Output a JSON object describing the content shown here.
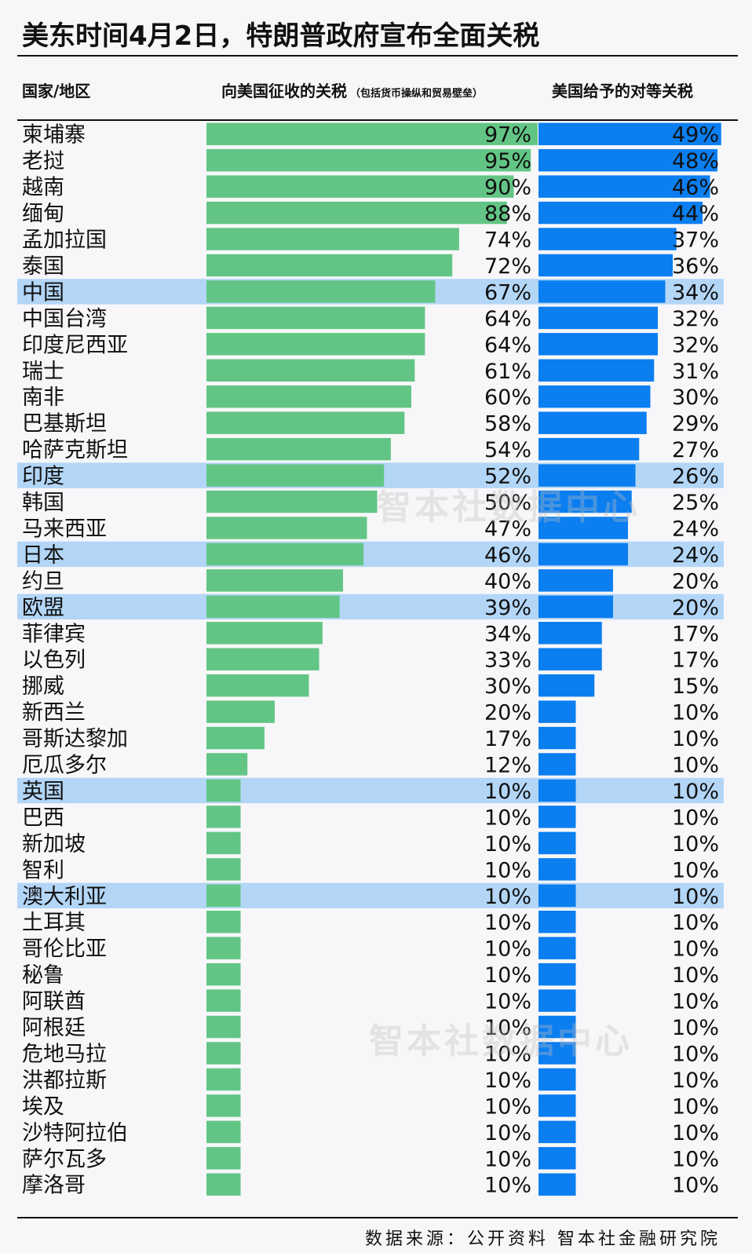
{
  "title": "美东时间4月2日，特朗普政府宣布全面关税",
  "headers": {
    "country": "国家/地区",
    "left": "向美国征收的关税",
    "left_note": "（包括货币操纵和贸易壁垒）",
    "right": "美国给予的对等关税"
  },
  "watermark": "智本社数据中心",
  "source": "数据来源：公开资料 智本社金融研究院",
  "colors": {
    "left_bar": "#63c585",
    "right_bar": "#0b7ef0",
    "highlight": "#b3d6f7",
    "text": "#111111"
  },
  "chart_data": {
    "type": "bar",
    "categories": [
      "柬埔寨",
      "老挝",
      "越南",
      "缅甸",
      "孟加拉国",
      "泰国",
      "中国",
      "中国台湾",
      "印度尼西亚",
      "瑞士",
      "南非",
      "巴基斯坦",
      "哈萨克斯坦",
      "印度",
      "韩国",
      "马来西亚",
      "日本",
      "约旦",
      "欧盟",
      "菲律宾",
      "以色列",
      "挪威",
      "新西兰",
      "哥斯达黎加",
      "厄瓜多尔",
      "英国",
      "巴西",
      "新加坡",
      "智利",
      "澳大利亚",
      "土耳其",
      "哥伦比亚",
      "秘鲁",
      "阿联酋",
      "阿根廷",
      "危地马拉",
      "洪都拉斯",
      "埃及",
      "沙特阿拉伯",
      "萨尔瓦多",
      "摩洛哥"
    ],
    "series": [
      {
        "name": "向美国征收的关税",
        "values": [
          97,
          95,
          90,
          88,
          74,
          72,
          67,
          64,
          64,
          61,
          60,
          58,
          54,
          52,
          50,
          47,
          46,
          40,
          39,
          34,
          33,
          30,
          20,
          17,
          12,
          10,
          10,
          10,
          10,
          10,
          10,
          10,
          10,
          10,
          10,
          10,
          10,
          10,
          10,
          10,
          10
        ]
      },
      {
        "name": "美国给予的对等关税",
        "values": [
          49,
          48,
          46,
          44,
          37,
          36,
          34,
          32,
          32,
          31,
          30,
          29,
          27,
          26,
          25,
          24,
          24,
          20,
          20,
          17,
          17,
          15,
          10,
          10,
          10,
          10,
          10,
          10,
          10,
          10,
          10,
          10,
          10,
          10,
          10,
          10,
          10,
          10,
          10,
          10,
          10
        ]
      }
    ],
    "value_suffix": "%",
    "highlighted": [
      "中国",
      "印度",
      "日本",
      "欧盟",
      "英国",
      "澳大利亚"
    ],
    "ylim": [
      0,
      100
    ]
  }
}
